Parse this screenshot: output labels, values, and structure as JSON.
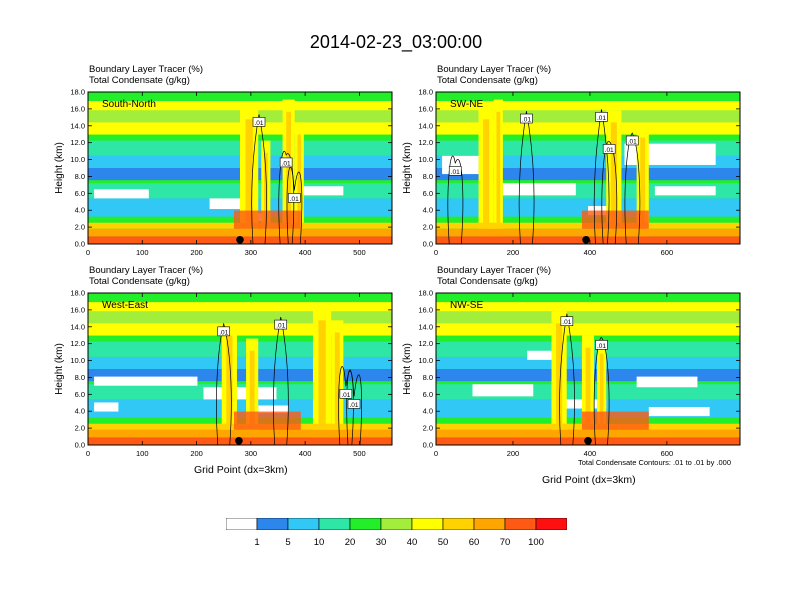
{
  "title": "2014-02-23_03:00:00",
  "colorbar": {
    "colors": [
      "#ffffff",
      "#2c86ec",
      "#31c8f5",
      "#2ee6a6",
      "#22ee2a",
      "#a2ee3a",
      "#ffff00",
      "#ffd200",
      "#ffa500",
      "#ff5a14",
      "#ff1010"
    ],
    "labels": [
      "1",
      "5",
      "10",
      "20",
      "30",
      "40",
      "50",
      "60",
      "70",
      "100"
    ]
  },
  "contour_note": "Total Condensate Contours: .01 to .01 by .000",
  "panels": [
    {
      "name": "South-North",
      "line1": "Boundary Layer Tracer   (%)",
      "line2": "Total Condensate   (g/kg)",
      "ylabel": "Height (km)",
      "xlabel": "",
      "xlim": [
        0,
        560
      ],
      "xticks": [
        "0",
        "100",
        "200",
        "300",
        "400",
        "500"
      ],
      "xtick_values": [
        0,
        100,
        200,
        300,
        400,
        500
      ],
      "yticks": [
        "0.0",
        "2.0",
        "4.0",
        "6.0",
        "8.0",
        "10.0",
        "12.0",
        "14.0",
        "16.0",
        "18.0"
      ],
      "ylim": [
        0,
        18
      ],
      "marker_x": 280,
      "contour_labels": [
        ".01",
        ".01",
        ".01"
      ],
      "contour_label_pos": [
        [
          315,
          14.4
        ],
        [
          365,
          9.6
        ],
        [
          380,
          5.4
        ]
      ]
    },
    {
      "name": "SW-NE",
      "line1": "Boundary Layer Tracer   (%)",
      "line2": "Total Condensate   (g/kg)",
      "ylabel": "Height (km)",
      "xlabel": "",
      "xlim": [
        0,
        790
      ],
      "xticks": [
        "0",
        "200",
        "400",
        "600"
      ],
      "xtick_values": [
        0,
        200,
        400,
        600
      ],
      "yticks": [
        "0.0",
        "2.0",
        "4.0",
        "6.0",
        "8.0",
        "10.0",
        "12.0",
        "14.0",
        "16.0",
        "18.0"
      ],
      "ylim": [
        0,
        18
      ],
      "marker_x": 390,
      "contour_labels": [
        ".01",
        ".01",
        ".01",
        ".01",
        ".01"
      ],
      "contour_label_pos": [
        [
          50,
          8.6
        ],
        [
          235,
          14.8
        ],
        [
          430,
          15.0
        ],
        [
          450,
          11.2
        ],
        [
          510,
          12.2
        ]
      ]
    },
    {
      "name": "West-East",
      "line1": "Boundary Layer Tracer   (%)",
      "line2": "Total Condensate   (g/kg)",
      "ylabel": "Height (km)",
      "xlabel": "Grid Point (dx=3km)",
      "xlim": [
        0,
        560
      ],
      "xticks": [
        "0",
        "100",
        "200",
        "300",
        "400",
        "500"
      ],
      "xtick_values": [
        0,
        100,
        200,
        300,
        400,
        500
      ],
      "yticks": [
        "0.0",
        "2.0",
        "4.0",
        "6.0",
        "8.0",
        "10.0",
        "12.0",
        "14.0",
        "16.0",
        "18.0"
      ],
      "ylim": [
        0,
        18
      ],
      "marker_x": 278,
      "contour_labels": [
        ".01",
        ".01",
        ".01",
        ".01"
      ],
      "contour_label_pos": [
        [
          250,
          13.4
        ],
        [
          355,
          14.2
        ],
        [
          475,
          6.0
        ],
        [
          490,
          4.8
        ]
      ]
    },
    {
      "name": "NW-SE",
      "line1": "Boundary Layer Tracer   (%)",
      "line2": "Total Condensate   (g/kg)",
      "ylabel": "Height (km)",
      "xlabel": "Grid Point (dx=3km)",
      "xlim": [
        0,
        790
      ],
      "xticks": [
        "0",
        "200",
        "400",
        "600"
      ],
      "xtick_values": [
        0,
        200,
        400,
        600
      ],
      "yticks": [
        "0.0",
        "2.0",
        "4.0",
        "6.0",
        "8.0",
        "10.0",
        "12.0",
        "14.0",
        "16.0",
        "18.0"
      ],
      "ylim": [
        0,
        18
      ],
      "marker_x": 395,
      "contour_labels": [
        ".01",
        ".01"
      ],
      "contour_label_pos": [
        [
          340,
          14.6
        ],
        [
          430,
          11.8
        ]
      ]
    }
  ]
}
